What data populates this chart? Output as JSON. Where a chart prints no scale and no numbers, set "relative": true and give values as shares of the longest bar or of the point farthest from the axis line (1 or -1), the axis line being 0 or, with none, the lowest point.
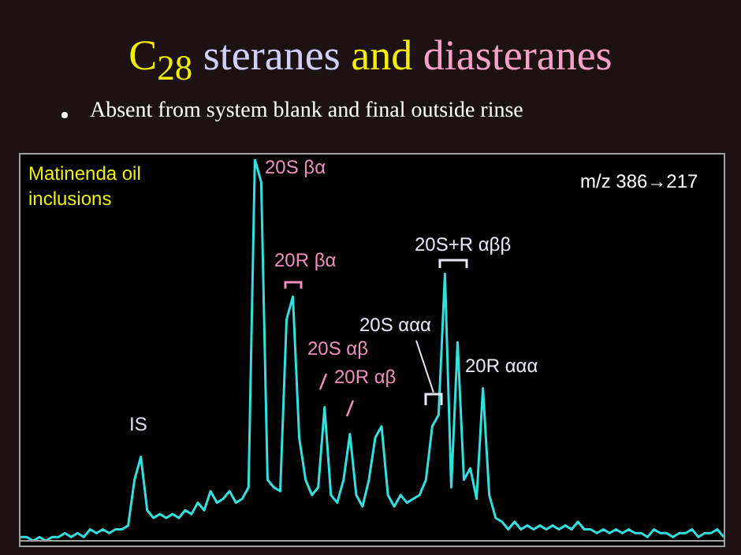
{
  "chart_data": {
    "type": "line",
    "relative": true,
    "title": "C$_{28}$ steranes and diasteranes",
    "subtitle": "Absent from system blank and final outside rinse",
    "annotations": [
      "Matinenda oil inclusions",
      "m/z 386→217",
      "IS",
      "20S βα",
      "20R βα",
      "20S αβ",
      "20R αβ",
      "20S ααα",
      "20S+R αββ",
      "20R ααα"
    ],
    "categories": [
      null,
      null,
      null,
      null,
      null,
      null,
      null,
      null,
      null,
      null,
      null,
      null,
      null,
      null,
      null,
      null,
      null,
      null,
      null,
      null,
      null,
      null,
      null,
      null,
      null,
      null,
      null,
      null,
      null,
      null,
      null,
      null,
      null,
      null,
      null,
      null,
      null,
      null,
      null,
      null,
      null,
      null,
      null,
      null,
      null,
      null,
      null,
      null,
      null,
      null,
      null,
      null,
      null,
      null,
      null,
      null,
      null,
      null,
      null,
      null,
      null,
      null,
      null,
      null,
      null,
      null,
      null,
      null,
      null,
      null,
      null,
      null,
      null,
      null,
      null,
      null,
      null,
      null,
      null,
      null,
      null,
      null,
      null,
      null,
      null,
      null,
      null,
      null,
      null,
      null,
      null,
      null,
      null,
      null,
      null,
      null,
      null,
      null,
      null,
      null,
      null,
      null,
      null,
      null,
      null,
      null,
      null,
      null,
      null,
      null,
      null,
      null
    ],
    "series": [
      {
        "color": "#33e0e0",
        "values": [
          0.01,
          0.01,
          0,
          0.01,
          0,
          0.01,
          0.01,
          0.02,
          0.01,
          0.02,
          0.01,
          0.03,
          0.02,
          0.03,
          0.02,
          0.03,
          0.03,
          0.04,
          0.16,
          0.22,
          0.08,
          0.06,
          0.07,
          0.06,
          0.07,
          0.06,
          0.08,
          0.07,
          0.1,
          0.08,
          0.13,
          0.1,
          0.11,
          0.13,
          0.1,
          0.11,
          0.14,
          1,
          0.94,
          0.16,
          0.14,
          0.13,
          0.58,
          0.64,
          0.27,
          0.16,
          0.12,
          0.14,
          0.35,
          0.12,
          0.1,
          0.16,
          0.28,
          0.12,
          0.09,
          0.16,
          0.27,
          0.3,
          0.12,
          0.09,
          0.12,
          0.1,
          0.11,
          0.12,
          0.16,
          0.3,
          0.33,
          0.7,
          0.14,
          0.52,
          0.16,
          0.19,
          0.11,
          0.4,
          0.12,
          0.06,
          0.05,
          0.03,
          0.05,
          0.03,
          0.04,
          0.03,
          0.04,
          0.03,
          0.04,
          0.03,
          0.04,
          0.03,
          0.05,
          0.03,
          0.03,
          0.02,
          0.03,
          0.02,
          0.03,
          0.02,
          0.03,
          0.02,
          0.02,
          0.01,
          0.03,
          0.02,
          0.02,
          0.01,
          0.02,
          0.02,
          0.03,
          0.01,
          0.02,
          0.02,
          0.03,
          0.01
        ]
      }
    ],
    "grid": false,
    "legend": false
  }
}
